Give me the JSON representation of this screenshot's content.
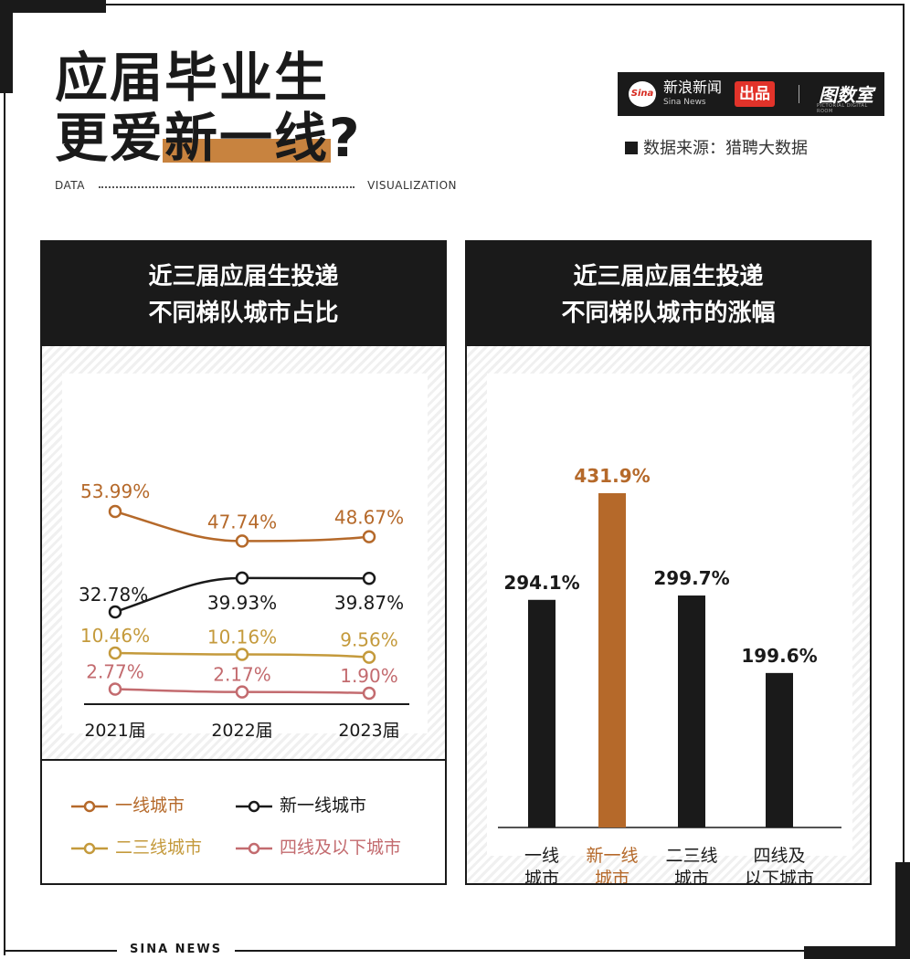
{
  "header": {
    "title_line1": "应届毕业生",
    "title_line2_pre": "更爱",
    "title_line2_highlight": "新一线",
    "title_line2_post": "?",
    "data_label": "DATA",
    "vis_label": "VISUALIZATION",
    "source": "数据来源：猎聘大数据"
  },
  "brand": {
    "logo_text": "Sina",
    "name": "新浪新闻",
    "sub": "Sina News",
    "chupin": "出品",
    "tushuju": "图数室",
    "tushuju_sub": "PICTORIAL DIGITAL ROOM"
  },
  "left_panel": {
    "title_line1": "近三届应届生投递",
    "title_line2": "不同梯队城市占比"
  },
  "right_panel": {
    "title_line1": "近三届应届生投递",
    "title_line2": "不同梯队城市的涨幅"
  },
  "footer": "SINA NEWS",
  "colors": {
    "tier1": "#b5692a",
    "new_tier1": "#1a1a1a",
    "tier23": "#c49a3c",
    "tier4": "#c36b6f",
    "highlight": "#c8833f",
    "bar_dark": "#1a1a1a",
    "bar_hl": "#b5692a"
  },
  "chart_data": [
    {
      "type": "line",
      "title": "近三届应届生投递不同梯队城市占比",
      "x": [
        "2021届",
        "2022届",
        "2023届"
      ],
      "series": [
        {
          "name": "一线城市",
          "values": [
            53.99,
            47.74,
            48.67
          ],
          "labels": [
            "53.99%",
            "47.74%",
            "48.67%"
          ],
          "color": "#b5692a"
        },
        {
          "name": "新一线城市",
          "values": [
            32.78,
            39.93,
            39.87
          ],
          "labels": [
            "32.78%",
            "39.93%",
            "39.87%"
          ],
          "color": "#1a1a1a"
        },
        {
          "name": "二三线城市",
          "values": [
            10.46,
            10.16,
            9.56
          ],
          "labels": [
            "10.46%",
            "10.16%",
            "9.56%"
          ],
          "color": "#c49a3c"
        },
        {
          "name": "四线及以下城市",
          "values": [
            2.77,
            2.17,
            1.9
          ],
          "labels": [
            "2.77%",
            "2.17%",
            "1.90%"
          ],
          "color": "#c36b6f"
        }
      ],
      "legend": "bottom",
      "grid": false
    },
    {
      "type": "bar",
      "title": "近三届应届生投递不同梯队城市的涨幅",
      "categories": [
        "一线城市",
        "新一线城市",
        "二三线城市",
        "四线及以下城市"
      ],
      "category_lines": [
        [
          "一线",
          "城市"
        ],
        [
          "新一线",
          "城市"
        ],
        [
          "二三线",
          "城市"
        ],
        [
          "四线及",
          "以下城市"
        ]
      ],
      "values": [
        294.1,
        431.9,
        299.7,
        199.6
      ],
      "labels": [
        "294.1%",
        "431.9%",
        "299.7%",
        "199.6%"
      ],
      "highlight_index": 1,
      "grid": false
    }
  ]
}
